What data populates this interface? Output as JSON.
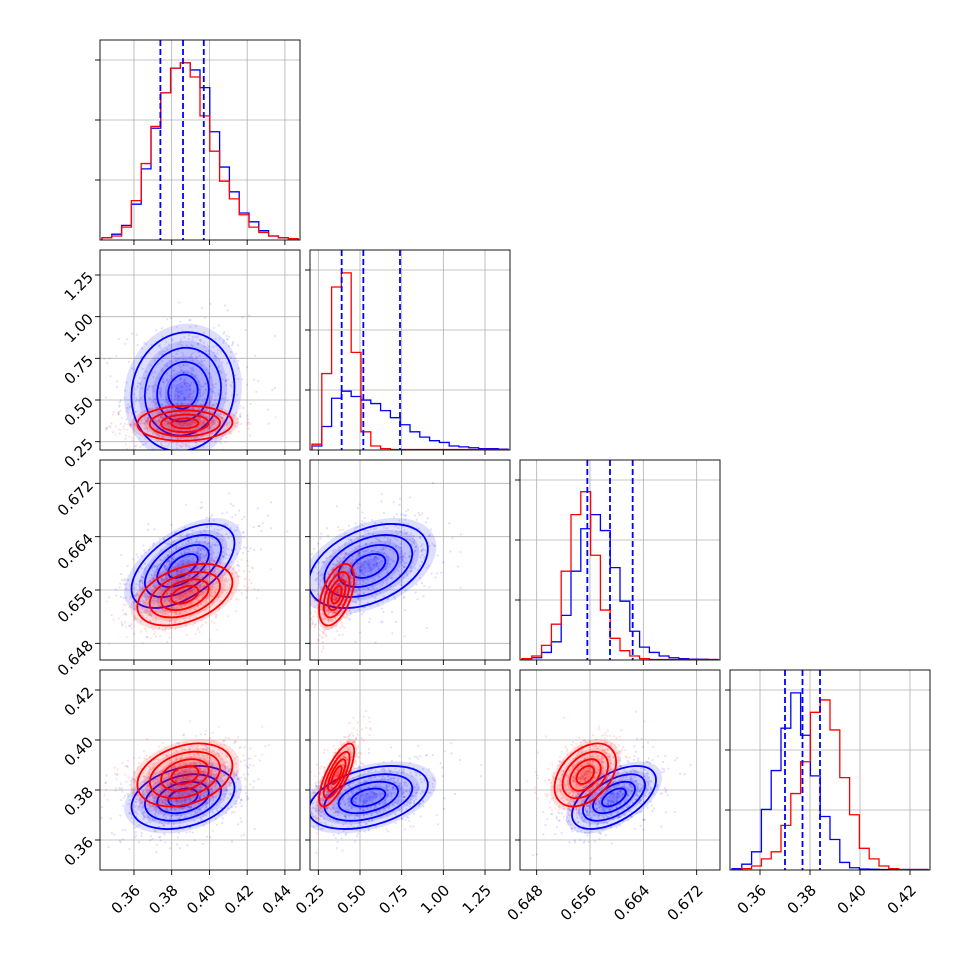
{
  "chart_data": {
    "type": "corner",
    "parameters": [
      {
        "ticks": [
          0.36,
          0.38,
          0.4,
          0.42,
          0.44
        ],
        "range": [
          0.342,
          0.448
        ]
      },
      {
        "ticks": [
          0.25,
          0.5,
          0.75,
          1.0,
          1.25
        ],
        "range": [
          0.2,
          1.4
        ]
      },
      {
        "ticks": [
          0.648,
          0.656,
          0.664,
          0.672
        ],
        "range": [
          0.6455,
          0.6755
        ]
      },
      {
        "ticks": [
          0.36,
          0.38,
          0.4,
          0.42
        ],
        "range": [
          0.348,
          0.428
        ]
      }
    ],
    "tick_labels": [
      [
        "0.36",
        "0.38",
        "0.40",
        "0.42",
        "0.44"
      ],
      [
        "0.25",
        "0.50",
        "0.75",
        "1.00",
        "1.25"
      ],
      [
        "0.648",
        "0.656",
        "0.664",
        "0.672"
      ],
      [
        "0.36",
        "0.38",
        "0.40",
        "0.42"
      ]
    ],
    "series": [
      {
        "color": "#0000ff",
        "quantiles": [
          [
            0.374,
            0.386,
            0.397
          ],
          [
            0.39,
            0.52,
            0.74
          ],
          [
            0.6556,
            0.659,
            0.6624
          ],
          [
            0.37,
            0.377,
            0.384
          ]
        ],
        "means": [
          0.386,
          0.55,
          0.6596,
          0.377
        ],
        "sigmas": [
          0.013,
          0.17,
          0.003,
          0.006
        ],
        "hist_heights": [
          [
            0.01,
            0.03,
            0.08,
            0.2,
            0.4,
            0.63,
            0.83,
            0.97,
            1.0,
            0.96,
            0.86,
            0.61,
            0.41,
            0.27,
            0.15,
            0.1,
            0.05,
            0.02,
            0.01,
            0.005
          ],
          [
            0.02,
            0.13,
            0.29,
            0.33,
            0.3,
            0.28,
            0.26,
            0.22,
            0.18,
            0.14,
            0.1,
            0.07,
            0.05,
            0.04,
            0.02,
            0.015,
            0.01,
            0.005,
            0.005,
            0.002
          ],
          [
            0.005,
            0.01,
            0.04,
            0.1,
            0.25,
            0.5,
            0.74,
            0.82,
            0.73,
            0.52,
            0.33,
            0.16,
            0.07,
            0.04,
            0.02,
            0.01,
            0.005,
            0.002,
            0.001,
            0.0
          ],
          [
            0.005,
            0.03,
            0.1,
            0.34,
            0.56,
            0.8,
            1.0,
            0.76,
            0.53,
            0.3,
            0.17,
            0.04,
            0.01,
            0.003,
            0.001,
            0.0,
            0.0,
            0.0,
            0.0,
            0.0
          ]
        ],
        "correlations": [
          [
            0,
            1,
            0.08
          ],
          [
            0,
            2,
            0.55
          ],
          [
            0,
            3,
            0.3
          ],
          [
            1,
            2,
            0.4
          ],
          [
            1,
            3,
            0.4
          ],
          [
            2,
            3,
            0.55
          ]
        ]
      },
      {
        "color": "#ff0000",
        "quantiles": null,
        "means": [
          0.387,
          0.36,
          0.6553,
          0.386
        ],
        "sigmas": [
          0.012,
          0.05,
          0.0022,
          0.006
        ],
        "hist_heights": [
          [
            0.01,
            0.02,
            0.07,
            0.22,
            0.43,
            0.64,
            0.83,
            0.97,
            1.0,
            0.92,
            0.7,
            0.5,
            0.33,
            0.23,
            0.14,
            0.07,
            0.04,
            0.02,
            0.01,
            0.005
          ],
          [
            0.03,
            0.43,
            0.92,
            1.0,
            0.55,
            0.1,
            0.02,
            0.005,
            0.0,
            0.0,
            0.0,
            0.0,
            0.0,
            0.0,
            0.0,
            0.0,
            0.0,
            0.0,
            0.0,
            0.0
          ],
          [
            0.005,
            0.02,
            0.08,
            0.2,
            0.5,
            0.82,
            0.95,
            0.59,
            0.28,
            0.12,
            0.05,
            0.02,
            0.005,
            0.0,
            0.0,
            0.0,
            0.0,
            0.0,
            0.0,
            0.0
          ],
          [
            0.0,
            0.005,
            0.02,
            0.06,
            0.1,
            0.25,
            0.43,
            0.61,
            0.89,
            0.96,
            0.79,
            0.52,
            0.31,
            0.12,
            0.06,
            0.02,
            0.005,
            0.0,
            0.0,
            0.0
          ]
        ],
        "correlations": [
          [
            0,
            1,
            0.05
          ],
          [
            0,
            2,
            0.4
          ],
          [
            0,
            3,
            0.3
          ],
          [
            1,
            2,
            0.5
          ],
          [
            1,
            3,
            0.75
          ],
          [
            2,
            3,
            0.4
          ]
        ]
      }
    ],
    "grid": true,
    "contour_levels": 4
  }
}
